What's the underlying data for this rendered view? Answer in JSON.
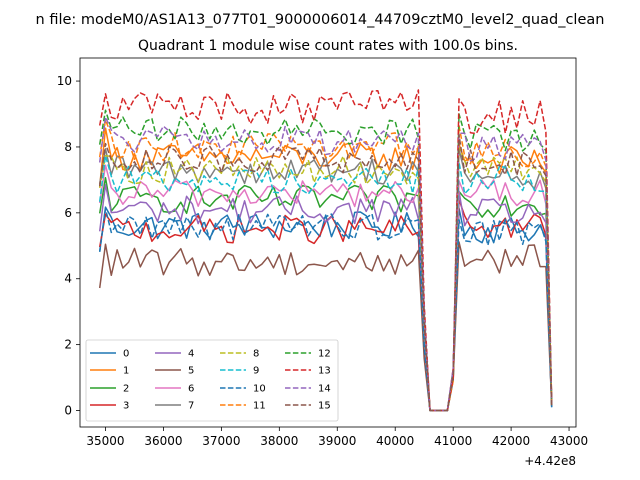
{
  "figure": {
    "suptitle": "n file: modeM0/AS1A13_077T01_9000006014_44709cztM0_level2_quad_clean",
    "offset_label": "+4.42e8"
  },
  "chart_data": {
    "type": "line",
    "title": "Quadrant 1 module wise count rates with 100.0s bins.",
    "xlabel": "",
    "ylabel": "",
    "x_offset": 442000000,
    "xlim": [
      34560,
      43120
    ],
    "ylim": [
      -0.5,
      10.7
    ],
    "xticks": [
      35000,
      36000,
      37000,
      38000,
      39000,
      40000,
      41000,
      42000,
      43000
    ],
    "yticks": [
      0,
      2,
      4,
      6,
      8,
      10
    ],
    "grid": false,
    "legend": {
      "position": "lower-left",
      "ncol": 4
    },
    "segments": [
      {
        "x_start": 34900,
        "x_end": 40400,
        "dx": 100
      },
      {
        "x_values": [
          40500,
          40600,
          40700,
          40800,
          40900,
          41000
        ]
      },
      {
        "x_start": 41100,
        "x_end": 42700,
        "dx": 100
      }
    ],
    "series": [
      {
        "name": "0",
        "color": "#1f77b4",
        "dash": "solid",
        "level1": 5.6,
        "level2": 5.5,
        "drop": 0.05
      },
      {
        "name": "1",
        "color": "#ff7f0e",
        "dash": "solid",
        "level1": 7.7,
        "level2": 7.6,
        "drop": 0.1
      },
      {
        "name": "2",
        "color": "#2ca02c",
        "dash": "solid",
        "level1": 6.4,
        "level2": 6.3,
        "drop": 0.1
      },
      {
        "name": "3",
        "color": "#d62728",
        "dash": "solid",
        "level1": 5.5,
        "level2": 5.6,
        "drop": 0.15
      },
      {
        "name": "4",
        "color": "#9467bd",
        "dash": "solid",
        "level1": 6.1,
        "level2": 6.0,
        "drop": 0.12
      },
      {
        "name": "5",
        "color": "#8c564b",
        "dash": "solid",
        "level1": 4.5,
        "level2": 4.6,
        "drop": 0.1
      },
      {
        "name": "6",
        "color": "#e377c2",
        "dash": "solid",
        "level1": 6.6,
        "level2": 6.6,
        "drop": 0.12
      },
      {
        "name": "7",
        "color": "#7f7f7f",
        "dash": "solid",
        "level1": 7.3,
        "level2": 7.1,
        "drop": 0.15
      },
      {
        "name": "8",
        "color": "#bcbd22",
        "dash": "dashed",
        "level1": 7.3,
        "level2": 7.3,
        "drop": 0.12
      },
      {
        "name": "9",
        "color": "#17becf",
        "dash": "dashed",
        "level1": 7.0,
        "level2": 7.0,
        "drop": 0.1
      },
      {
        "name": "10",
        "color": "#1f77b4",
        "dash": "dashed",
        "level1": 5.6,
        "level2": 5.4,
        "drop": 0.05
      },
      {
        "name": "11",
        "color": "#ff7f0e",
        "dash": "dashed",
        "level1": 8.0,
        "level2": 7.8,
        "drop": 0.1
      },
      {
        "name": "12",
        "color": "#2ca02c",
        "dash": "dashed",
        "level1": 8.5,
        "level2": 8.3,
        "drop": 0.12
      },
      {
        "name": "13",
        "color": "#d62728",
        "dash": "dashed",
        "level1": 9.2,
        "level2": 8.9,
        "drop": 0.2
      },
      {
        "name": "14",
        "color": "#9467bd",
        "dash": "dashed",
        "level1": 8.2,
        "level2": 8.0,
        "drop": 0.15
      },
      {
        "name": "15",
        "color": "#8c564b",
        "dash": "dashed",
        "level1": 7.6,
        "level2": 7.5,
        "drop": 0.1
      }
    ]
  }
}
